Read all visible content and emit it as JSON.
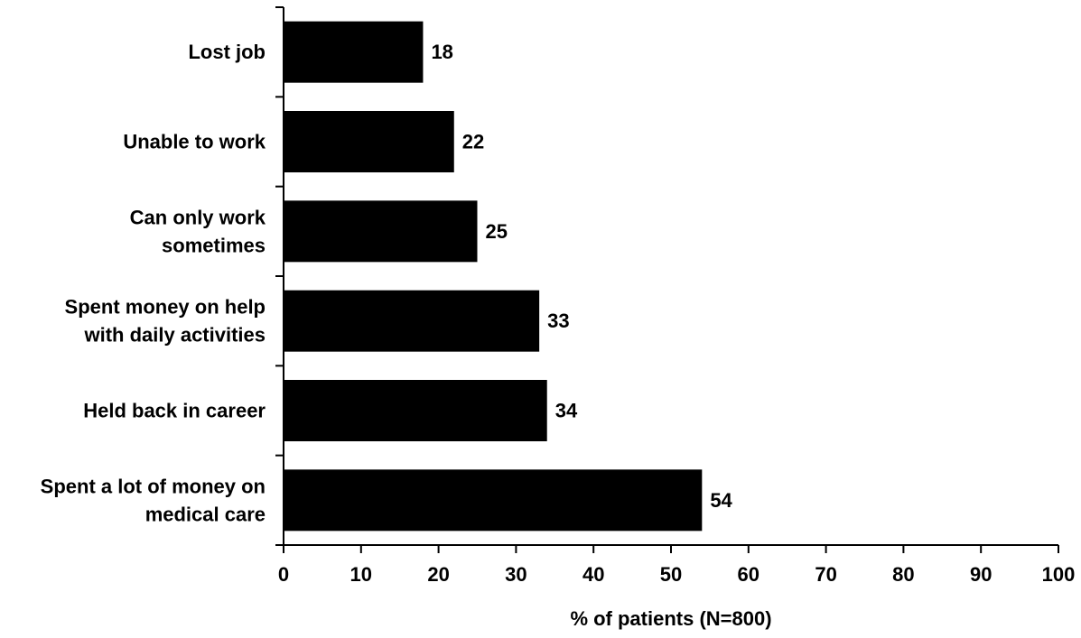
{
  "chart_data": {
    "type": "bar",
    "orientation": "horizontal",
    "title": "",
    "xlabel": "% of patients (N=800)",
    "ylabel": "",
    "xlim": [
      0,
      100
    ],
    "xticks": [
      "0",
      "10",
      "20",
      "30",
      "40",
      "50",
      "60",
      "70",
      "80",
      "90",
      "100"
    ],
    "grid": false,
    "legend": "none",
    "bar_color": "#000000",
    "categories": [
      [
        "Lost job"
      ],
      [
        "Unable to work"
      ],
      [
        "Can only work",
        "sometimes"
      ],
      [
        "Spent money on help",
        "with daily activities"
      ],
      [
        "Held back in career"
      ],
      [
        "Spent a lot of money on",
        "medical care"
      ]
    ],
    "values": [
      18,
      22,
      25,
      33,
      34,
      54
    ],
    "value_labels": [
      "18",
      "22",
      "25",
      "33",
      "34",
      "54"
    ]
  }
}
